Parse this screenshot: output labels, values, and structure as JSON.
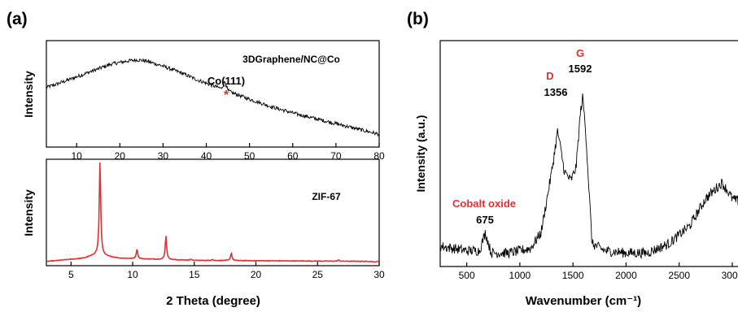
{
  "panel_labels": {
    "a": "(a)",
    "b": "(b)"
  },
  "colors": {
    "axis": "#000000",
    "black_trace": "#000000",
    "red_trace": "#e03030",
    "red_label": "#e03030"
  },
  "chart_data": [
    {
      "type": "line",
      "panel": "(a) top",
      "ylabel": "Intensity",
      "xlabel": "",
      "xlim": [
        3,
        80
      ],
      "xticks": [
        10,
        20,
        30,
        40,
        50,
        60,
        70,
        80
      ],
      "xtick_labels": [
        "10",
        "20",
        "30",
        "40",
        "50",
        "60",
        "70",
        "80"
      ],
      "series": [
        {
          "name": "3DGraphene/NC@Co",
          "color": "#000000",
          "x": [
            3,
            6,
            10,
            14,
            18,
            22,
            24,
            26,
            30,
            34,
            38,
            42,
            43.5,
            44.3,
            45,
            46,
            50,
            55,
            60,
            65,
            70,
            75,
            80
          ],
          "y": [
            0.56,
            0.6,
            0.66,
            0.72,
            0.78,
            0.81,
            0.82,
            0.81,
            0.76,
            0.7,
            0.63,
            0.57,
            0.55,
            0.62,
            0.53,
            0.51,
            0.45,
            0.38,
            0.32,
            0.27,
            0.22,
            0.17,
            0.12
          ]
        }
      ],
      "annotations": [
        {
          "text": "Co(111)",
          "x": 44.3
        },
        {
          "text": "*",
          "x": 44.3,
          "color": "#e03030"
        }
      ]
    },
    {
      "type": "line",
      "panel": "(a) bottom",
      "ylabel": "Intensity",
      "xlabel": "2 Theta (degree)",
      "xlim": [
        3,
        30
      ],
      "xticks": [
        5,
        10,
        15,
        20,
        25,
        30
      ],
      "xtick_labels": [
        "5",
        "10",
        "15",
        "20",
        "25",
        "30"
      ],
      "series": [
        {
          "name": "ZIF-67",
          "color": "#e03030",
          "baseline": [
            [
              3,
              0.04
            ],
            [
              6,
              0.07
            ],
            [
              7,
              0.1
            ],
            [
              9,
              0.07
            ],
            [
              15,
              0.05
            ],
            [
              30,
              0.04
            ]
          ],
          "peaks": [
            [
              7.35,
              0.93
            ],
            [
              10.35,
              0.14
            ],
            [
              12.7,
              0.27
            ],
            [
              14.7,
              0.06
            ],
            [
              16.45,
              0.06
            ],
            [
              18.0,
              0.12
            ],
            [
              22.1,
              0.05
            ],
            [
              24.5,
              0.05
            ],
            [
              26.7,
              0.06
            ],
            [
              29.6,
              0.04
            ]
          ]
        }
      ]
    },
    {
      "type": "line",
      "panel": "(b)",
      "ylabel": "Intensity (a.u.)",
      "xlabel": "Wavenumber (cm⁻¹)",
      "xlim": [
        250,
        3100
      ],
      "xticks": [
        500,
        1000,
        1500,
        2000,
        2500,
        3000
      ],
      "xtick_labels": [
        "500",
        "1000",
        "1500",
        "2000",
        "2500",
        "3000"
      ],
      "series": [
        {
          "name": "",
          "color": "#000000",
          "x": [
            250,
            500,
            620,
            675,
            730,
            900,
            1100,
            1200,
            1300,
            1356,
            1420,
            1480,
            1530,
            1570,
            1592,
            1620,
            1680,
            1800,
            2000,
            2200,
            2400,
            2600,
            2750,
            2900,
            2950,
            3000,
            3100
          ],
          "y": [
            0.09,
            0.07,
            0.07,
            0.15,
            0.06,
            0.06,
            0.08,
            0.15,
            0.42,
            0.6,
            0.42,
            0.38,
            0.44,
            0.68,
            0.75,
            0.6,
            0.1,
            0.07,
            0.06,
            0.06,
            0.1,
            0.18,
            0.3,
            0.37,
            0.34,
            0.3,
            0.28
          ]
        }
      ],
      "annotations": [
        {
          "text": "D",
          "color": "#e03030"
        },
        {
          "text": "1356"
        },
        {
          "text": "G",
          "color": "#e03030"
        },
        {
          "text": "1592"
        },
        {
          "text": "Cobalt oxide",
          "color": "#e03030"
        },
        {
          "text": "675"
        }
      ]
    }
  ]
}
